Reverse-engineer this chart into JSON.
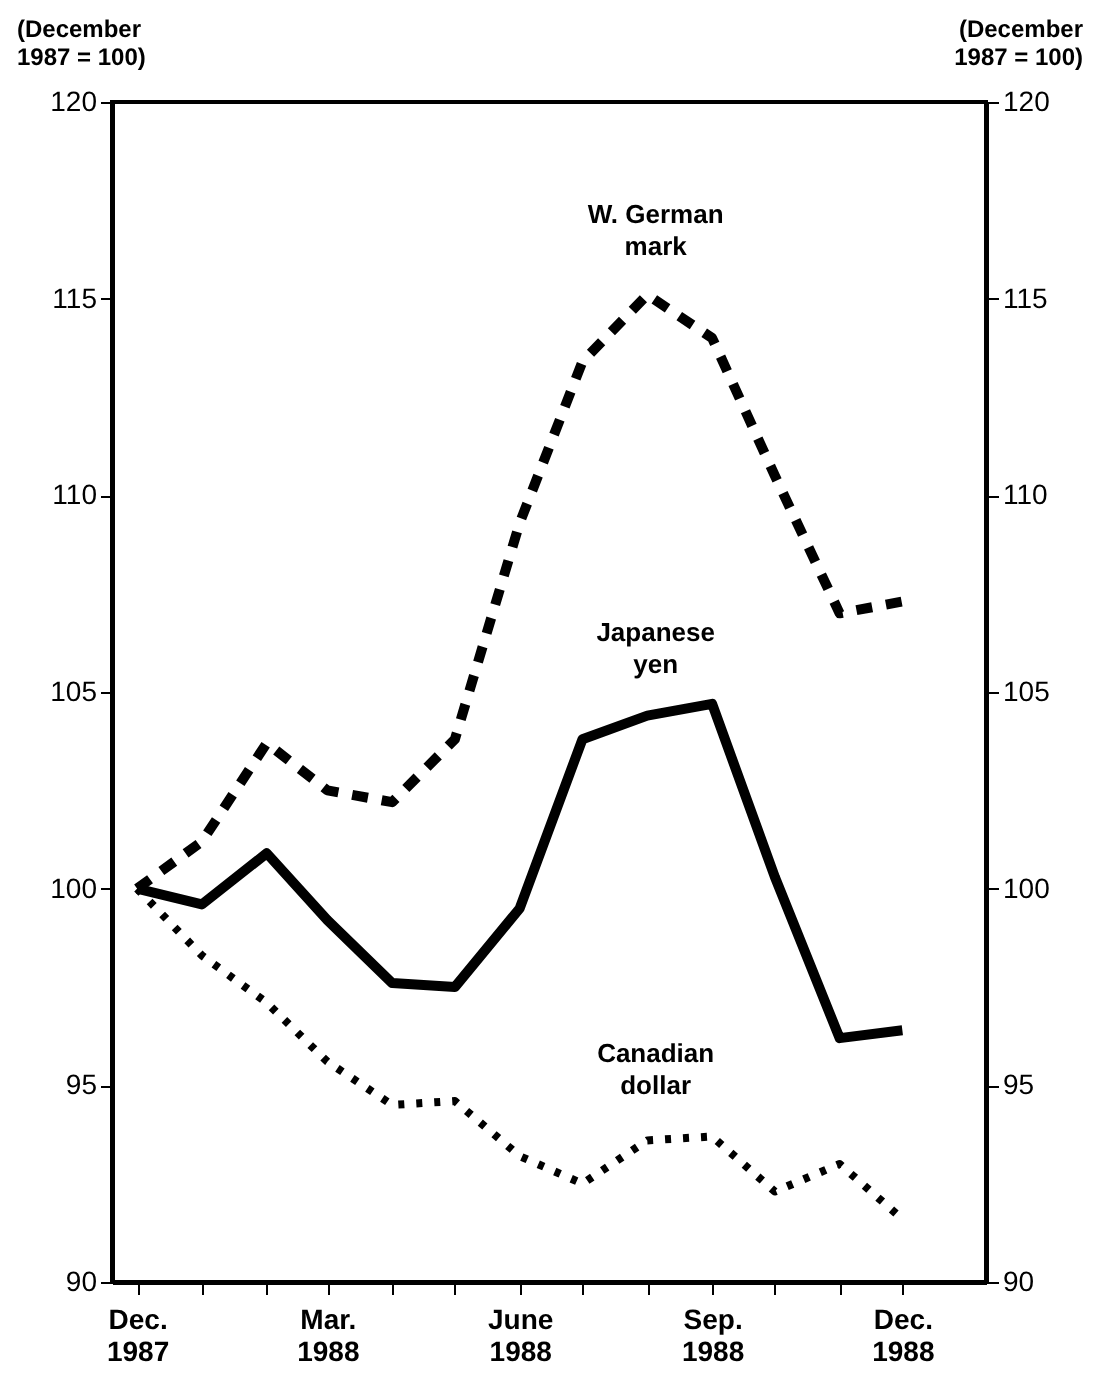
{
  "chart_data": {
    "type": "line",
    "ylabel": "(December\n1987 = 100)",
    "y2label": "(December\n1987 = 100)",
    "x": [
      "1987-12",
      "1988-01",
      "1988-02",
      "1988-03",
      "1988-04",
      "1988-05",
      "1988-06",
      "1988-07",
      "1988-08",
      "1988-09",
      "1988-10",
      "1988-11",
      "1988-12"
    ],
    "xlim": [
      "1987-11-19",
      "1989-01-10"
    ],
    "xticks": [
      {
        "value": "1987-12",
        "label": "Dec.\n1987"
      },
      {
        "value": "1988-01",
        "label": null
      },
      {
        "value": "1988-02",
        "label": null
      },
      {
        "value": "1988-03",
        "label": "Mar.\n1988"
      },
      {
        "value": "1988-04",
        "label": null
      },
      {
        "value": "1988-05",
        "label": null
      },
      {
        "value": "1988-06",
        "label": "June\n1988"
      },
      {
        "value": "1988-07",
        "label": null
      },
      {
        "value": "1988-08",
        "label": null
      },
      {
        "value": "1988-09",
        "label": "Sep.\n1988"
      },
      {
        "value": "1988-10",
        "label": null
      },
      {
        "value": "1988-11",
        "label": null
      },
      {
        "value": "1988-12",
        "label": "Dec.\n1988"
      }
    ],
    "ylim": [
      90,
      120
    ],
    "yticks": [
      90,
      95,
      100,
      105,
      110,
      115,
      120
    ],
    "y2lim": [
      90,
      120
    ],
    "y2ticks": [
      90,
      95,
      100,
      105,
      110,
      115,
      120
    ],
    "grid": false,
    "legend": false,
    "series": [
      {
        "name": "W. German\nmark",
        "color": "#000000",
        "line_style": "dashed",
        "values": [
          100,
          101.2,
          103.7,
          102.5,
          102.2,
          103.8,
          109.3,
          113.4,
          115.1,
          114.0,
          110.5,
          107.0,
          107.3
        ]
      },
      {
        "name": "Japanese\nyen",
        "color": "#000000",
        "line_style": "solid",
        "values": [
          100,
          99.6,
          100.9,
          99.2,
          97.6,
          97.5,
          99.5,
          103.8,
          104.4,
          104.7,
          100.3,
          96.2,
          96.4
        ]
      },
      {
        "name": "Canadian\ndollar",
        "color": "#000000",
        "line_style": "dotted",
        "values": [
          100,
          98.3,
          97.1,
          95.6,
          94.5,
          94.6,
          93.2,
          92.5,
          93.6,
          93.7,
          92.3,
          93.0,
          91.6
        ]
      }
    ]
  }
}
